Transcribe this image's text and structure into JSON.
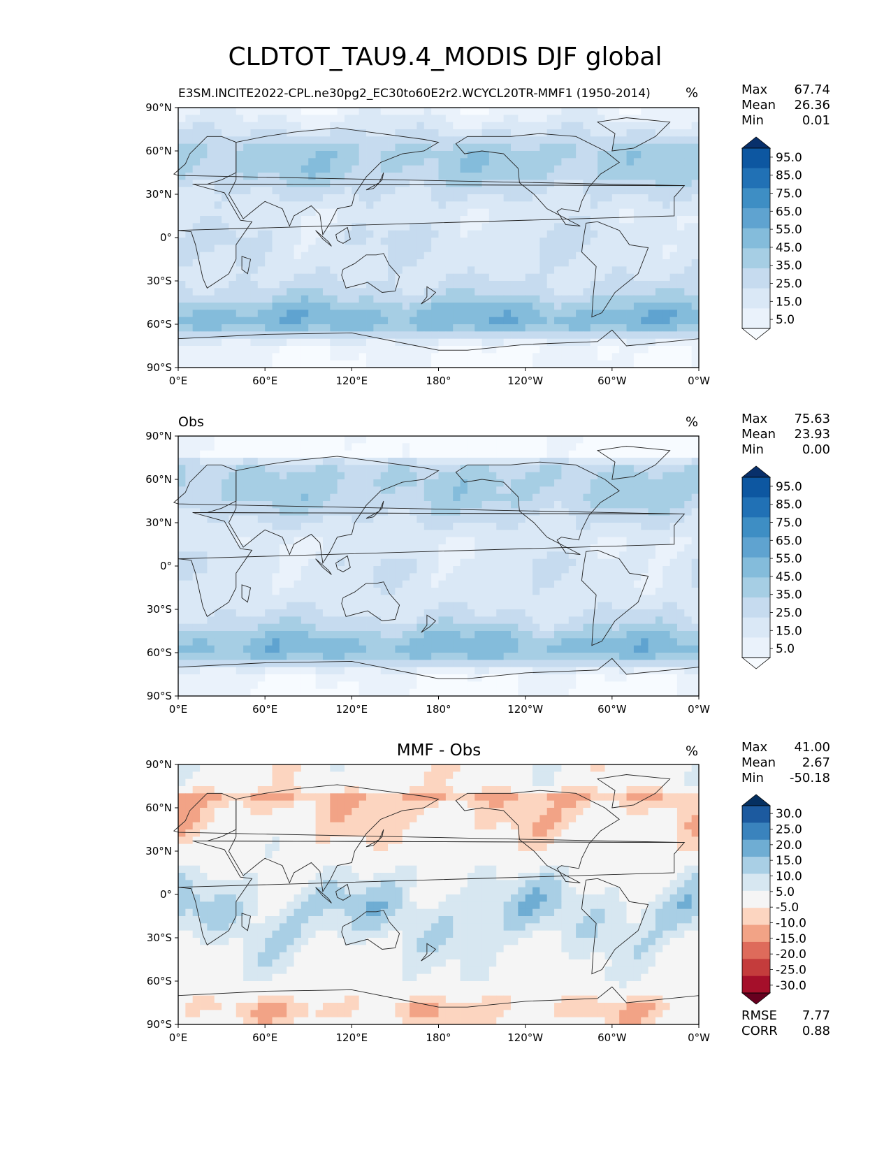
{
  "figure": {
    "title": "CLDTOT_TAU9.4_MODIS DJF global"
  },
  "axes_ticks": {
    "lat": [
      "90°N",
      "60°N",
      "30°N",
      "0°",
      "30°S",
      "60°S",
      "90°S"
    ],
    "lon": [
      "0°E",
      "60°E",
      "120°E",
      "180°",
      "120°W",
      "60°W",
      "0°W"
    ]
  },
  "panels": [
    {
      "id": "test",
      "left_title": "E3SM.INCITE2022-CPL.ne30pg2_EC30to60E2r2.WCYCL20TR-MMF1 (1950-2014)",
      "center_title": "",
      "units": "%",
      "stats": [
        {
          "label": "Max",
          "value": "67.74"
        },
        {
          "label": "Mean",
          "value": "26.36"
        },
        {
          "label": "Min",
          "value": "0.01"
        }
      ],
      "colorbar": {
        "ticks": [
          "95.0",
          "85.0",
          "75.0",
          "65.0",
          "55.0",
          "45.0",
          "35.0",
          "25.0",
          "15.0",
          "5.0"
        ],
        "colors": [
          "#f7fbff",
          "#eaf2fb",
          "#dae8f6",
          "#c6dbef",
          "#a6cee4",
          "#84bcdb",
          "#5fa3d0",
          "#3e8ec4",
          "#2171b5",
          "#0d57a1",
          "#08306b"
        ]
      },
      "field": {
        "scheme": "clouds",
        "base_mean": 26.36,
        "zonal_profile": [
          [
            -90,
            5
          ],
          [
            -75,
            6
          ],
          [
            -68,
            30
          ],
          [
            -60,
            52
          ],
          [
            -50,
            48
          ],
          [
            -40,
            32
          ],
          [
            -25,
            22
          ],
          [
            -10,
            22
          ],
          [
            0,
            24
          ],
          [
            15,
            18
          ],
          [
            30,
            25
          ],
          [
            45,
            38
          ],
          [
            60,
            40
          ],
          [
            75,
            22
          ],
          [
            90,
            8
          ]
        ]
      },
      "extra_stats": []
    },
    {
      "id": "ref",
      "left_title": "Obs",
      "center_title": "",
      "units": "%",
      "stats": [
        {
          "label": "Max",
          "value": "75.63"
        },
        {
          "label": "Mean",
          "value": "23.93"
        },
        {
          "label": "Min",
          "value": "0.00"
        }
      ],
      "colorbar": {
        "ticks": [
          "95.0",
          "85.0",
          "75.0",
          "65.0",
          "55.0",
          "45.0",
          "35.0",
          "25.0",
          "15.0",
          "5.0"
        ],
        "colors": [
          "#f7fbff",
          "#eaf2fb",
          "#dae8f6",
          "#c6dbef",
          "#a6cee4",
          "#84bcdb",
          "#5fa3d0",
          "#3e8ec4",
          "#2171b5",
          "#0d57a1",
          "#08306b"
        ]
      },
      "field": {
        "scheme": "clouds",
        "base_mean": 23.93,
        "zonal_profile": [
          [
            -90,
            3
          ],
          [
            -75,
            6
          ],
          [
            -68,
            28
          ],
          [
            -60,
            50
          ],
          [
            -50,
            46
          ],
          [
            -40,
            30
          ],
          [
            -25,
            20
          ],
          [
            -10,
            20
          ],
          [
            0,
            22
          ],
          [
            15,
            16
          ],
          [
            30,
            24
          ],
          [
            45,
            36
          ],
          [
            60,
            38
          ],
          [
            72,
            30
          ],
          [
            74,
            0
          ],
          [
            90,
            0
          ]
        ]
      },
      "extra_stats": []
    },
    {
      "id": "diff",
      "left_title": "",
      "center_title": "MMF - Obs",
      "units": "%",
      "stats": [
        {
          "label": "Max",
          "value": "41.00"
        },
        {
          "label": "Mean",
          "value": "2.67"
        },
        {
          "label": "Min",
          "value": "-50.18"
        }
      ],
      "colorbar": {
        "ticks": [
          "30.0",
          "25.0",
          "20.0",
          "15.0",
          "10.0",
          "5.0",
          "-5.0",
          "-10.0",
          "-15.0",
          "-20.0",
          "-25.0",
          "-30.0"
        ],
        "colors": [
          "#67001f",
          "#a50f2a",
          "#c43c3c",
          "#de6b5b",
          "#f2a386",
          "#fcd5c0",
          "#f5f5f5",
          "#d7e7f1",
          "#a9cfe5",
          "#6fadd3",
          "#3a83bd",
          "#1c5a9f",
          "#053061"
        ]
      },
      "field": {
        "scheme": "diff",
        "base_mean": 2.67,
        "zonal_profile": [
          [
            -90,
            -2
          ],
          [
            -80,
            -8
          ],
          [
            -70,
            -3
          ],
          [
            -60,
            2
          ],
          [
            -45,
            3
          ],
          [
            -25,
            8
          ],
          [
            -10,
            10
          ],
          [
            0,
            8
          ],
          [
            15,
            4
          ],
          [
            30,
            0
          ],
          [
            45,
            -4
          ],
          [
            60,
            -6
          ],
          [
            70,
            -12
          ],
          [
            74,
            0
          ],
          [
            90,
            0
          ]
        ]
      },
      "extra_stats": [
        {
          "label": "RMSE",
          "value": "7.77"
        },
        {
          "label": "CORR",
          "value": "0.88"
        }
      ]
    }
  ]
}
